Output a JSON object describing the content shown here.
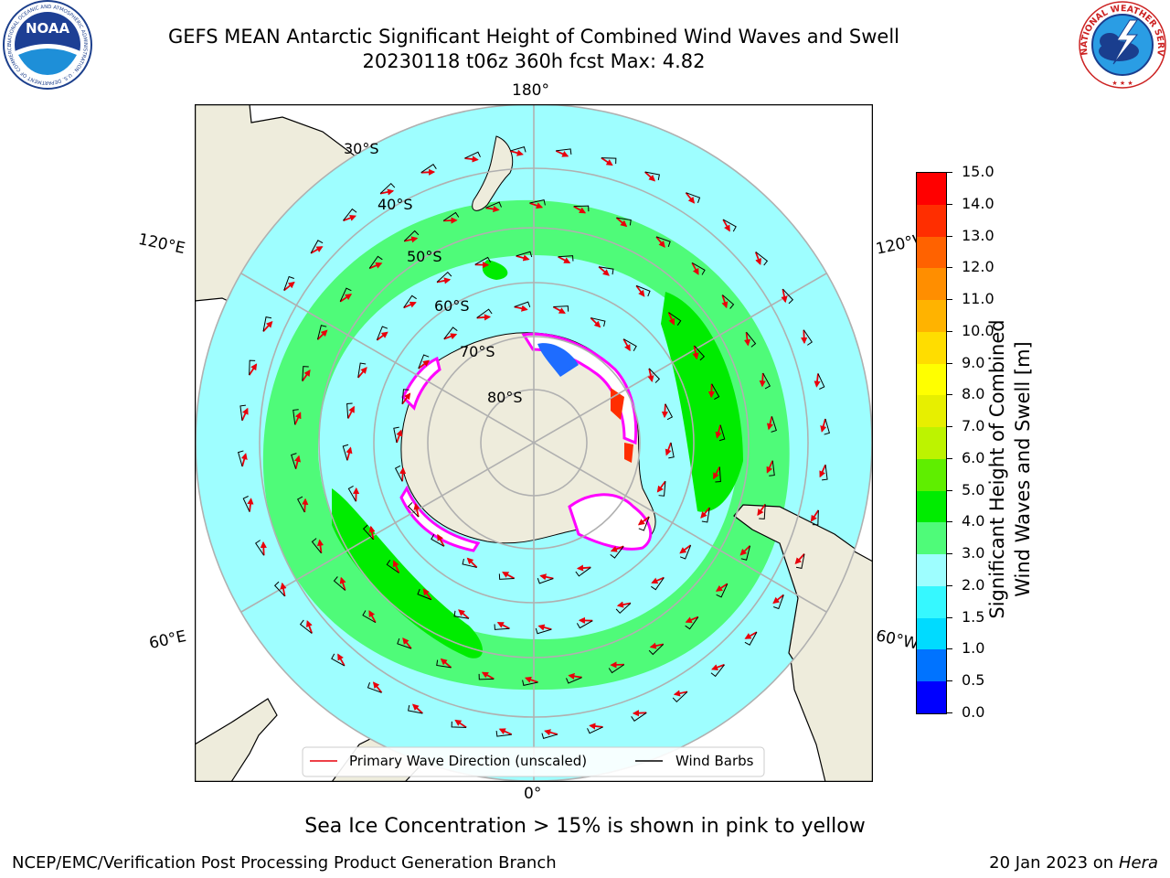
{
  "title": {
    "line1": "GEFS MEAN Antarctic Significant Height of Combined Wind Waves and Swell",
    "line2": "20230118 t06z 360h fcst   Max: 4.82"
  },
  "logos": {
    "noaa_text": "NOAA",
    "noaa_ring": "NATIONAL OCEANIC AND ATMOSPHERIC ADMINISTRATION · U.S. DEPARTMENT OF COMMERCE",
    "nws_ring": "NATIONAL WEATHER SERVICE"
  },
  "map": {
    "longitude_labels": [
      "180°",
      "120°E",
      "120°W",
      "60°E",
      "60°W",
      "0°"
    ],
    "latitude_labels": [
      "30°S",
      "40°S",
      "50°S",
      "60°S",
      "70°S",
      "80°S"
    ],
    "legend": {
      "wave_direction": "Primary Wave Direction (unscaled)",
      "wind_barbs": "Wind Barbs"
    },
    "colors": {
      "land": "#eeecdc",
      "sea_ice_fill": "#ffffff",
      "sea_ice_edge": "#ff00ff",
      "arrow": "#e8000b",
      "grid": "#b0b0b0"
    }
  },
  "colorbar": {
    "label_line1": "Significant Height of Combined",
    "label_line2": "Wind Waves and Swell [m]",
    "ticks": [
      "0.0",
      "0.5",
      "1.0",
      "1.5",
      "2.0",
      "3.0",
      "4.0",
      "5.0",
      "6.0",
      "7.0",
      "8.0",
      "9.0",
      "10.0",
      "11.0",
      "12.0",
      "13.0",
      "14.0",
      "15.0"
    ],
    "colors": [
      "#0000ff",
      "#0073ff",
      "#00dbff",
      "#36f8ff",
      "#9efeff",
      "#4ffb79",
      "#00ec00",
      "#5fee00",
      "#bdf300",
      "#e7ef00",
      "#ffff00",
      "#ffdd00",
      "#ffb300",
      "#ff8e00",
      "#ff6200",
      "#ff2e00",
      "#ff0000"
    ]
  },
  "chart_data": {
    "type": "heatmap",
    "title": "GEFS MEAN Antarctic Significant Height of Combined Wind Waves and Swell",
    "subtitle": "20230118 t06z 360h fcst   Max: 4.82",
    "projection": "South polar stereographic",
    "max_value": 4.82,
    "units": "m",
    "colorbar_range": [
      0,
      15
    ],
    "legend_placement": "bottom-center",
    "bands_by_latitude": [
      {
        "lat_range": "30°S–45°S",
        "height_m": "2.0–3.0"
      },
      {
        "lat_range": "45°S–58°S",
        "height_m": "3.0–4.0"
      },
      {
        "lat_range": "58°S–65°S",
        "height_m": "2.0–3.0"
      },
      {
        "lat_range": "near ice edge",
        "height_m": "0.0–2.0"
      }
    ]
  },
  "footer": {
    "note": "Sea Ice Concentration > 15% is shown in pink to yellow",
    "org": "NCEP/EMC/Verification Post Processing Product Generation Branch",
    "date": "20 Jan 2023 on ",
    "host": "Hera"
  }
}
